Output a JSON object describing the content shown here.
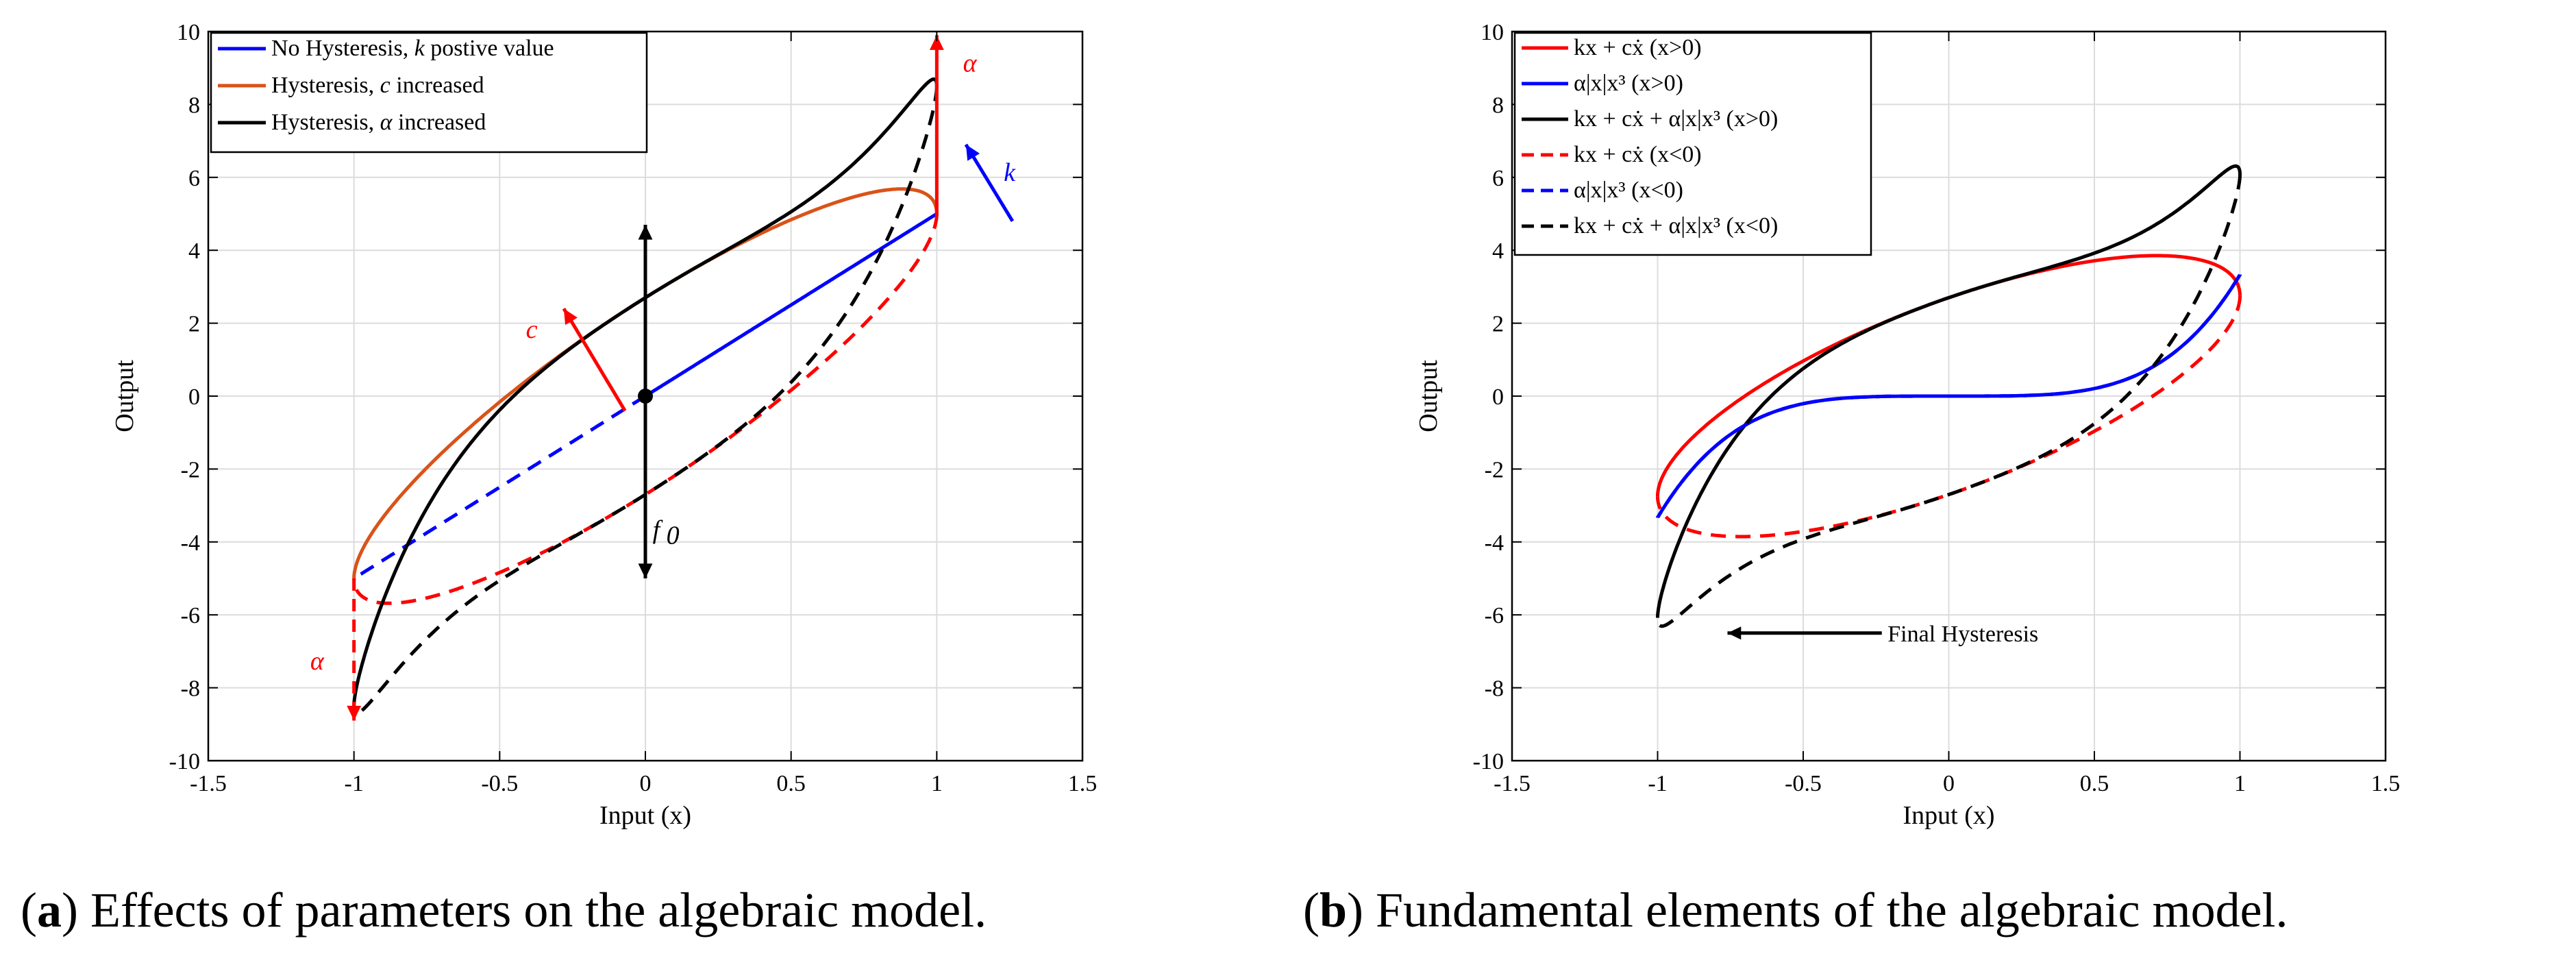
{
  "chart_data": [
    {
      "type": "line",
      "panel_label": "a",
      "caption": "Effects of parameters on the algebraic model.",
      "xlabel": "Input (x)",
      "ylabel": "Output",
      "xlim": [
        -1.5,
        1.5
      ],
      "ylim": [
        -10,
        10
      ],
      "grid": true,
      "legend_position": "top-left",
      "xticks": [
        -1.5,
        -1,
        -0.5,
        0,
        0.5,
        1,
        1.5
      ],
      "xtick_labels": [
        "-1.5",
        "-1",
        "-0.5",
        "0",
        "0.5",
        "1",
        "1.5"
      ],
      "yticks": [
        -10,
        -8,
        -6,
        -4,
        -2,
        0,
        2,
        4,
        6,
        8,
        10
      ],
      "ytick_labels": [
        "-10",
        "-8",
        "-6",
        "-4",
        "-2",
        "0",
        "2",
        "4",
        "6",
        "8",
        "10"
      ],
      "model": {
        "k": 5,
        "f0": 0
      },
      "series": [
        {
          "name": "No Hysteresis, k postive value",
          "legend": [
            "No Hysteresis, ",
            "k",
            " postive value"
          ],
          "color": "#0000ff",
          "c": 0,
          "alpha": 0
        },
        {
          "name": "Hysteresis, c increased",
          "legend": [
            "Hysteresis, ",
            "c",
            " increased"
          ],
          "color": "#d95319",
          "c": 2.7,
          "alpha": 0
        },
        {
          "name": "Hysteresis, α increased",
          "legend": [
            "Hysteresis, ",
            "α",
            " increased"
          ],
          "color": "#000000",
          "c": 2.7,
          "alpha": 3.5
        }
      ],
      "annotations": {
        "k": "k",
        "c": "c",
        "alpha_top": "α",
        "alpha_bottom": "α",
        "f0": "f",
        "f0_sub": "0"
      },
      "colors": {
        "annotation_red": "#ff0000",
        "annotation_blue": "#0000ff"
      }
    },
    {
      "type": "line",
      "panel_label": "b",
      "caption": "Fundamental elements of the algebraic model.",
      "xlabel": "Input (x)",
      "ylabel": "Output",
      "xlim": [
        -1.5,
        1.5
      ],
      "ylim": [
        -10,
        10
      ],
      "grid": true,
      "legend_position": "top-left",
      "xticks": [
        -1.5,
        -1,
        -0.5,
        0,
        0.5,
        1,
        1.5
      ],
      "xtick_labels": [
        "-1.5",
        "-1",
        "-0.5",
        "0",
        "0.5",
        "1",
        "1.5"
      ],
      "yticks": [
        -10,
        -8,
        -6,
        -4,
        -2,
        0,
        2,
        4,
        6,
        8,
        10
      ],
      "ytick_labels": [
        "-10",
        "-8",
        "-6",
        "-4",
        "-2",
        "0",
        "2",
        "4",
        "6",
        "8",
        "10"
      ],
      "model": {
        "k": 2.75,
        "c": 2.7,
        "alpha": 3.33
      },
      "series": [
        {
          "name": "kx + cẋ (x>0)",
          "legend": "kx + cẋ (x>0)",
          "color": "#ff0000",
          "style": "solid",
          "component": "kc",
          "branch": "upper"
        },
        {
          "name": "α|x|x³ (x>0)",
          "legend": "α|x|x³ (x>0)",
          "color": "#0000ff",
          "style": "solid",
          "component": "alpha",
          "branch": "upper"
        },
        {
          "name": "kx + cẋ + α|x|x³ (x>0)",
          "legend": "kx + cẋ + α|x|x³ (x>0)",
          "color": "#000000",
          "style": "solid",
          "component": "total",
          "branch": "upper"
        },
        {
          "name": "kx + cẋ (x<0)",
          "legend": "kx + cẋ (x<0)",
          "color": "#ff0000",
          "style": "dashed",
          "component": "kc",
          "branch": "lower"
        },
        {
          "name": "α|x|x³ (x<0)",
          "legend": "α|x|x³ (x<0)",
          "color": "#0000ff",
          "style": "dashed",
          "component": "alpha",
          "branch": "lower"
        },
        {
          "name": "kx + cẋ + α|x|x³ (x<0)",
          "legend": "kx + cẋ + α|x|x³ (x<0)",
          "color": "#000000",
          "style": "dashed",
          "component": "total",
          "branch": "lower"
        }
      ],
      "annotations": {
        "final_hysteresis": "Final Hysteresis"
      }
    }
  ]
}
